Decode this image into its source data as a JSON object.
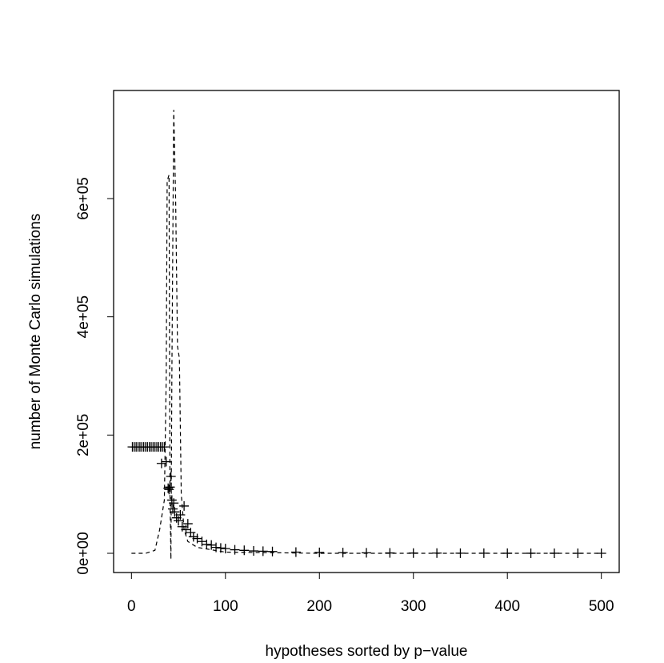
{
  "chart_data": {
    "type": "scatter",
    "x_label": "hypotheses sorted by p−value",
    "y_label": "number of Monte Carlo simulations",
    "xlim": [
      -19,
      519
    ],
    "ylim": [
      -32500,
      782800
    ],
    "xticks": [
      0,
      100,
      200,
      300,
      400,
      500
    ],
    "yticks": [
      {
        "value": 0,
        "label": "0e+00"
      },
      {
        "value": 200000,
        "label": "2e+05"
      },
      {
        "value": 400000,
        "label": "4e+05"
      },
      {
        "value": 600000,
        "label": "6e+05"
      }
    ],
    "series": [
      {
        "type": "scatter",
        "marker": "+",
        "color": "#000000",
        "x": [
          1,
          3,
          5,
          7,
          9,
          11,
          13,
          15,
          17,
          19,
          21,
          23,
          25,
          27,
          29,
          31,
          33,
          35,
          32,
          37,
          39,
          40,
          41,
          42,
          43,
          44,
          45,
          46,
          48,
          50,
          52,
          54,
          56,
          58,
          60,
          63,
          66,
          70,
          75,
          80,
          85,
          90,
          95,
          100,
          110,
          120,
          130,
          140,
          150,
          175,
          200,
          225,
          250,
          275,
          300,
          325,
          350,
          375,
          400,
          425,
          450,
          475,
          500
        ],
        "values": [
          180000,
          180000,
          180000,
          180000,
          180000,
          180000,
          180000,
          180000,
          180000,
          180000,
          180000,
          180000,
          180000,
          180000,
          180000,
          180000,
          180000,
          180000,
          152000,
          155000,
          110000,
          108000,
          112000,
          130000,
          90000,
          75000,
          85000,
          70000,
          60000,
          55000,
          65000,
          45000,
          80000,
          40000,
          50000,
          35000,
          28000,
          25000,
          20000,
          15000,
          14000,
          10000,
          9000,
          8000,
          6000,
          5000,
          4000,
          3500,
          3000,
          2000,
          1500,
          1200,
          800,
          600,
          400,
          300,
          200,
          150,
          100,
          80,
          60,
          40,
          20
        ]
      },
      {
        "type": "line",
        "dash": true,
        "color": "#000000",
        "x": [
          0,
          15,
          25,
          30,
          35,
          37,
          38,
          40,
          41,
          42,
          43,
          45,
          47,
          49,
          51,
          53,
          56,
          60,
          70,
          100,
          200,
          500
        ],
        "values": [
          0,
          0,
          5000,
          40000,
          90000,
          300000,
          630000,
          640000,
          100000,
          -10000,
          300000,
          750000,
          600000,
          350000,
          330000,
          100000,
          40000,
          20000,
          10000,
          2000,
          0,
          0
        ]
      }
    ]
  }
}
